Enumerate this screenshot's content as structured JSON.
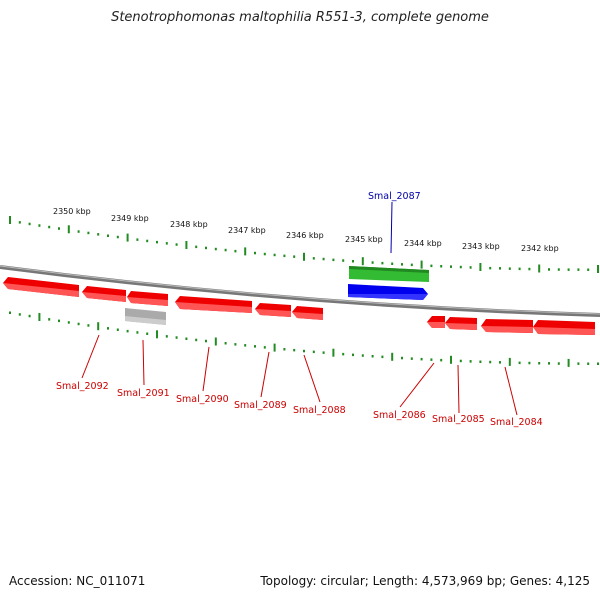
{
  "title": "Stenotrophomonas maltophilia R551-3, complete genome",
  "accession": "Accession: NC_011071",
  "topology": "Topology: circular; Length: 4,573,969 bp; Genes: 4,125",
  "colors": {
    "forward_gene": "#33bb33",
    "forward_cds": "#0000ee",
    "reverse_gene": "#ee0000",
    "pseudo": "#aaaaaa",
    "ruler": "#228b22",
    "backbone": "#777777",
    "forward_label": "#0000aa",
    "reverse_label": "#cc0000"
  },
  "ruler_labels": [
    "2350 kbp",
    "2349 kbp",
    "2348 kbp",
    "2347 kbp",
    "2346 kbp",
    "2345 kbp",
    "2344 kbp",
    "2343 kbp",
    "2342 kbp"
  ],
  "forward_label": "Smal_2087",
  "reverse_labels": [
    "Smal_2092",
    "Smal_2091",
    "Smal_2090",
    "Smal_2089",
    "Smal_2088",
    "Smal_2086",
    "Smal_2085",
    "Smal_2084"
  ]
}
